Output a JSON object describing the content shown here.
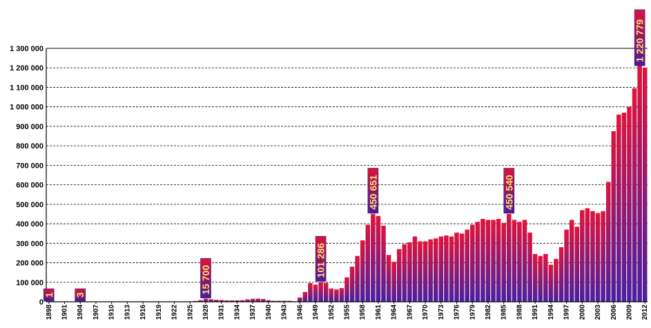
{
  "chart_data": {
    "type": "bar",
    "title": "",
    "xlabel": "",
    "ylabel": "",
    "ylim": [
      0,
      1300000
    ],
    "grid": true,
    "y_ticks": [
      0,
      100000,
      200000,
      300000,
      400000,
      500000,
      600000,
      700000,
      800000,
      900000,
      1000000,
      1100000,
      1200000,
      1300000
    ],
    "y_tick_labels": [
      "0",
      "100 000",
      "200 000",
      "300 000",
      "400 000",
      "500 000",
      "600 000",
      "700 000",
      "800 000",
      "900 000",
      "1 000 000",
      "1 100 000",
      "1 200 000",
      "1 300 000"
    ],
    "x_tick_labels": [
      "1898",
      "1901",
      "1904",
      "1907",
      "1910",
      "1913",
      "1916",
      "1919",
      "1922",
      "1925",
      "1928",
      "1931",
      "1934",
      "1937",
      "1940",
      "1943",
      "1946",
      "1949",
      "1952",
      "1955",
      "1958",
      "1961",
      "1964",
      "1967",
      "1970",
      "1973",
      "1976",
      "1979",
      "1982",
      "1985",
      "1988",
      "1991",
      "1994",
      "1997",
      "2000",
      "2003",
      "2006",
      "2009",
      "2012"
    ],
    "x": [
      1898,
      1899,
      1900,
      1901,
      1902,
      1903,
      1904,
      1905,
      1906,
      1907,
      1908,
      1909,
      1910,
      1911,
      1912,
      1913,
      1914,
      1915,
      1916,
      1917,
      1918,
      1919,
      1920,
      1921,
      1922,
      1923,
      1924,
      1925,
      1926,
      1927,
      1928,
      1929,
      1930,
      1931,
      1932,
      1933,
      1934,
      1935,
      1936,
      1937,
      1938,
      1939,
      1940,
      1941,
      1942,
      1943,
      1944,
      1945,
      1946,
      1947,
      1948,
      1949,
      1950,
      1951,
      1952,
      1953,
      1954,
      1955,
      1956,
      1957,
      1958,
      1959,
      1960,
      1961,
      1962,
      1963,
      1964,
      1965,
      1966,
      1967,
      1968,
      1969,
      1970,
      1971,
      1972,
      1973,
      1974,
      1975,
      1976,
      1977,
      1978,
      1979,
      1980,
      1981,
      1982,
      1983,
      1984,
      1985,
      1986,
      1987,
      1988,
      1989,
      1990,
      1991,
      1992,
      1993,
      1994,
      1995,
      1996,
      1997,
      1998,
      1999,
      2000,
      2001,
      2002,
      2003,
      2004,
      2005,
      2006,
      2007,
      2008,
      2009,
      2010,
      2011,
      2012
    ],
    "values": [
      1,
      0,
      0,
      0,
      0,
      0,
      3,
      0,
      0,
      0,
      0,
      0,
      0,
      0,
      0,
      0,
      0,
      0,
      0,
      0,
      0,
      0,
      0,
      0,
      0,
      0,
      0,
      2000,
      4000,
      8000,
      15700,
      13000,
      10000,
      9000,
      7000,
      7000,
      7000,
      8000,
      12000,
      15000,
      16000,
      14000,
      8000,
      5000,
      5000,
      5000,
      5000,
      2000,
      22000,
      50000,
      96000,
      88000,
      101286,
      97000,
      68000,
      63000,
      70000,
      125000,
      180000,
      235000,
      315000,
      395000,
      450651,
      440000,
      390000,
      240000,
      205000,
      270000,
      295000,
      305000,
      335000,
      310000,
      310000,
      320000,
      325000,
      335000,
      340000,
      335000,
      355000,
      350000,
      370000,
      395000,
      410000,
      425000,
      420000,
      420000,
      425000,
      405000,
      450540,
      420000,
      410000,
      420000,
      355000,
      245000,
      235000,
      245000,
      190000,
      220000,
      280000,
      370000,
      420000,
      385000,
      470000,
      480000,
      465000,
      455000,
      465000,
      615000,
      875000,
      960000,
      970000,
      1000000,
      1095000,
      1220779,
      1200000
    ],
    "callouts": [
      {
        "year": 1898,
        "label": "1"
      },
      {
        "year": 1904,
        "label": "3"
      },
      {
        "year": 1928,
        "label": "15 700"
      },
      {
        "year": 1950,
        "label": "101 286"
      },
      {
        "year": 1960,
        "label": "450 651"
      },
      {
        "year": 1986,
        "label": "450 540"
      },
      {
        "year": 2011,
        "label": "1 220 779"
      }
    ],
    "colors": {
      "bar_top": "#e0143c",
      "bar_bottom": "#4a1fa0",
      "callout_top": "#d8143a",
      "callout_bottom": "#4a1a9c",
      "callout_text": "#ffe36a",
      "grid": "#000000"
    }
  }
}
